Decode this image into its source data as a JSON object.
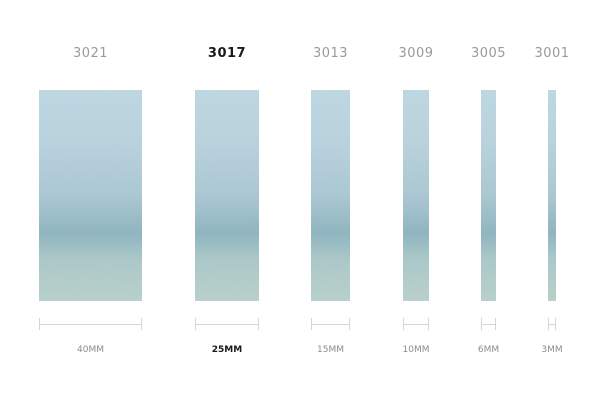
{
  "ribbons": [
    {
      "code": "3021",
      "width_label": "40MM",
      "selected": false
    },
    {
      "code": "3017",
      "width_label": "25MM",
      "selected": true
    },
    {
      "code": "3013",
      "width_label": "15MM",
      "selected": false
    },
    {
      "code": "3009",
      "width_label": "10MM",
      "selected": false
    },
    {
      "code": "3005",
      "width_label": "6MM",
      "selected": false
    },
    {
      "code": "3001",
      "width_label": "3MM",
      "selected": false
    }
  ],
  "colors": {
    "swatch_top": "#bcd6e1",
    "swatch_band": "#8db3be",
    "swatch_bottom": "#b7cfc9",
    "selected_text": "#1a1a1a",
    "muted_text": "#9a9a9a"
  }
}
